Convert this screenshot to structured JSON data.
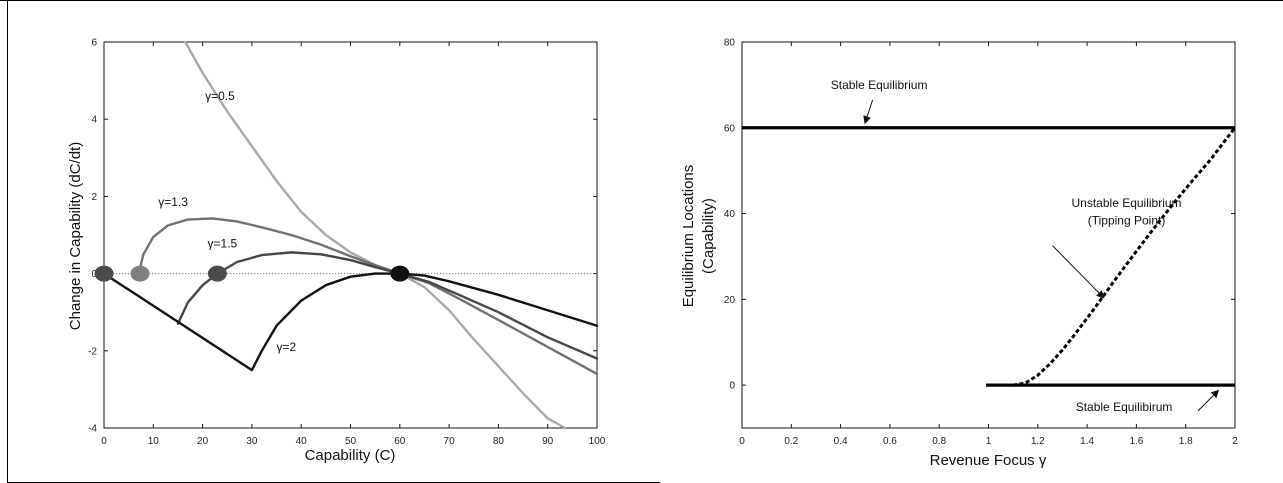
{
  "chart_data": [
    {
      "type": "line",
      "xlabel": "Capability (C)",
      "ylabel": "Change in Capability (dC/dt)",
      "xlim": [
        0,
        100
      ],
      "ylim": [
        -4,
        6
      ],
      "xticks": [
        0,
        10,
        20,
        30,
        40,
        50,
        60,
        70,
        80,
        90,
        100
      ],
      "yticks": [
        -4,
        -2,
        0,
        2,
        4,
        6
      ],
      "xtick_labels": [
        "0",
        "10",
        "20",
        "30",
        "40",
        "50",
        "60",
        "70",
        "80",
        "90",
        "100"
      ],
      "ytick_labels": [
        "-4",
        "-2",
        "0",
        "2",
        "4",
        "6"
      ],
      "grid": false,
      "zero_line": true,
      "series": [
        {
          "name": "γ=0.5",
          "color": "#a8a8a8",
          "points": [
            [
              16.5,
              6.0
            ],
            [
              20,
              5.2
            ],
            [
              25,
              4.2
            ],
            [
              30,
              3.3
            ],
            [
              35,
              2.4
            ],
            [
              40,
              1.6
            ],
            [
              45,
              1.0
            ],
            [
              50,
              0.55
            ],
            [
              55,
              0.22
            ],
            [
              60,
              0.0
            ],
            [
              65,
              -0.35
            ],
            [
              70,
              -0.95
            ],
            [
              75,
              -1.7
            ],
            [
              80,
              -2.4
            ],
            [
              85,
              -3.1
            ],
            [
              90,
              -3.75
            ],
            [
              93.5,
              -4.0
            ]
          ]
        },
        {
          "name": "γ=1.3",
          "color": "#707070",
          "points": [
            [
              7,
              0.0
            ],
            [
              8,
              0.5
            ],
            [
              10,
              0.95
            ],
            [
              13,
              1.25
            ],
            [
              17,
              1.4
            ],
            [
              22,
              1.43
            ],
            [
              27,
              1.35
            ],
            [
              32,
              1.2
            ],
            [
              38,
              1.0
            ],
            [
              44,
              0.75
            ],
            [
              50,
              0.45
            ],
            [
              55,
              0.22
            ],
            [
              60,
              0.0
            ],
            [
              66,
              -0.25
            ],
            [
              72,
              -0.65
            ],
            [
              80,
              -1.2
            ],
            [
              90,
              -1.9
            ],
            [
              100,
              -2.6
            ]
          ]
        },
        {
          "name": "γ=1.5",
          "color": "#474747",
          "points": [
            [
              15,
              -1.3
            ],
            [
              17,
              -0.75
            ],
            [
              20,
              -0.3
            ],
            [
              23,
              0.0
            ],
            [
              27,
              0.3
            ],
            [
              32,
              0.48
            ],
            [
              38,
              0.55
            ],
            [
              44,
              0.5
            ],
            [
              50,
              0.35
            ],
            [
              55,
              0.17
            ],
            [
              60,
              0.0
            ],
            [
              66,
              -0.22
            ],
            [
              72,
              -0.55
            ],
            [
              80,
              -1.0
            ],
            [
              90,
              -1.65
            ],
            [
              100,
              -2.2
            ]
          ]
        },
        {
          "name": "γ=2",
          "color": "#111111",
          "points": [
            [
              0,
              0.0
            ],
            [
              30,
              -2.5
            ],
            [
              32,
              -2.0
            ],
            [
              35,
              -1.35
            ],
            [
              40,
              -0.7
            ],
            [
              45,
              -0.3
            ],
            [
              50,
              -0.08
            ],
            [
              55,
              0.0
            ],
            [
              60,
              0.0
            ],
            [
              65,
              -0.05
            ],
            [
              70,
              -0.2
            ],
            [
              80,
              -0.55
            ],
            [
              90,
              -0.95
            ],
            [
              100,
              -1.35
            ]
          ]
        }
      ],
      "equilibria": [
        {
          "x": 0,
          "y": 0,
          "color": "#4a4a4a"
        },
        {
          "x": 7.3,
          "y": 0,
          "color": "#7f7f7f"
        },
        {
          "x": 23,
          "y": 0,
          "color": "#4a4a4a"
        },
        {
          "x": 60,
          "y": 0,
          "color": "#111111"
        }
      ],
      "annotations": [
        {
          "text": "γ=0.5",
          "x": 20.5,
          "y": 4.5
        },
        {
          "text": "γ=1.3",
          "x": 11,
          "y": 1.75
        },
        {
          "text": "γ=1.5",
          "x": 21,
          "y": 0.68
        },
        {
          "text": "γ=2",
          "x": 35,
          "y": -2.0
        }
      ]
    },
    {
      "type": "line",
      "xlabel": "Revenue Focus γ",
      "ylabel_lines": [
        "Equilibrium Locations",
        "(Capability)"
      ],
      "xlim": [
        0,
        2
      ],
      "ylim": [
        -10,
        80
      ],
      "xticks": [
        0,
        0.2,
        0.4,
        0.6,
        0.8,
        1,
        1.2,
        1.4,
        1.6,
        1.8,
        2
      ],
      "yticks": [
        0,
        20,
        40,
        60,
        80
      ],
      "xtick_labels": [
        "0",
        "0.2",
        "0.4",
        "0.6",
        "0.8",
        "1",
        "1.2",
        "1.4",
        "1.6",
        "1.8",
        "2"
      ],
      "ytick_labels": [
        "0",
        "20",
        "40",
        "60",
        "80"
      ],
      "grid": false,
      "series": [
        {
          "kind": "stable-top",
          "color": "#000000",
          "dashed": false,
          "points": [
            [
              0,
              60
            ],
            [
              2,
              60
            ]
          ]
        },
        {
          "kind": "stable-bottom",
          "color": "#000000",
          "dashed": false,
          "points": [
            [
              0.99,
              0
            ],
            [
              2,
              0
            ]
          ]
        },
        {
          "kind": "unstable",
          "color": "#000000",
          "dashed": true,
          "points": [
            [
              1.1,
              0.0
            ],
            [
              1.15,
              0.5
            ],
            [
              1.2,
              2.3
            ],
            [
              1.25,
              5.0
            ],
            [
              1.3,
              8.2
            ],
            [
              1.35,
              11.8
            ],
            [
              1.4,
              15.6
            ],
            [
              1.45,
              19.5
            ],
            [
              1.5,
              23.5
            ],
            [
              1.55,
              27.4
            ],
            [
              1.6,
              31.2
            ],
            [
              1.65,
              35.0
            ],
            [
              1.7,
              38.7
            ],
            [
              1.75,
              42.3
            ],
            [
              1.8,
              45.8
            ],
            [
              1.85,
              49.2
            ],
            [
              1.9,
              52.5
            ],
            [
              1.95,
              56.3
            ],
            [
              2.0,
              60.0
            ]
          ]
        }
      ],
      "annotations": {
        "stable_top": {
          "text": "Stable Equilibrium",
          "x": 0.36,
          "y": 69,
          "arrow_from": [
            0.53,
            66.5
          ],
          "arrow_to": [
            0.5,
            61.3
          ]
        },
        "unstable_lines": [
          "Unstable Equilibrium",
          "(Tipping Point)"
        ],
        "unstable_x": 1.56,
        "unstable_y1": 41.5,
        "unstable_y2": 37.5,
        "unstable_arrow_from": [
          1.26,
          32.5
        ],
        "unstable_arrow_to": [
          1.465,
          20.5
        ],
        "stable_bottom": {
          "text": "Stable Equilibirum",
          "x": 1.55,
          "y": -6,
          "arrow_from": [
            1.85,
            -6.0
          ],
          "arrow_to": [
            1.93,
            -1.4
          ]
        }
      }
    }
  ]
}
